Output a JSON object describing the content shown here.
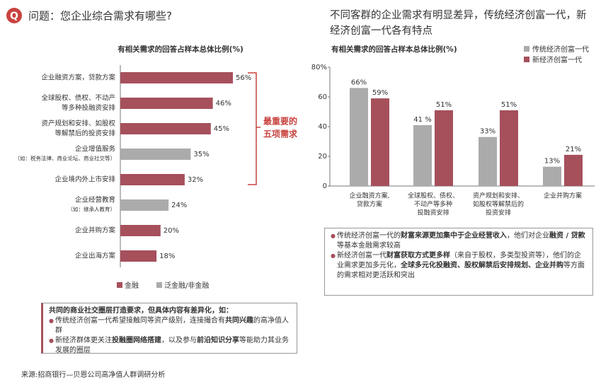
{
  "header": {
    "left_title": "问题：您企业综合需求有哪些?",
    "right_title": [
      "不同客群的企业需求有明显差异，传统经济创富一代，新",
      "经济创富一代各有特点"
    ],
    "source": "来源:招商银行—贝恩公司高净值人群调研分析"
  },
  "chart_data": [
    {
      "type": "hbar",
      "title": "有相关需求的回答占样本总体比例(%)",
      "categories": [
        [
          "企业融资方案，贷款方案"
        ],
        [
          "全球股权、债权、不动产",
          "等多种投融资安排"
        ],
        [
          "资产规划和安排、如股权",
          "等解禁后的投资安排"
        ],
        [
          "企业增值服务"
        ],
        [
          "企业境内外上市安排"
        ],
        [
          "企业经营教育"
        ],
        [
          "企业并购方案"
        ],
        [
          "企业出海方案"
        ]
      ],
      "category_notes": [
        null,
        null,
        null,
        "（如：税务法律、商业论坛、商业社交等）",
        null,
        "（如：继承人教育）",
        null,
        null
      ],
      "values": [
        56,
        46,
        45,
        35,
        32,
        24,
        20,
        18
      ],
      "value_labels": [
        "56%",
        "46%",
        "45%",
        "35%",
        "32%",
        "24%",
        "20%",
        "18%"
      ],
      "colors": [
        "#a6505c",
        "#a6505c",
        "#a6505c",
        "#ababab",
        "#a6505c",
        "#ababab",
        "#a6505c",
        "#a6505c"
      ],
      "legend": [
        {
          "name": "金融",
          "color": "#a6505c"
        },
        {
          "name": "泛金融/非金融",
          "color": "#ababab"
        }
      ],
      "annotation": [
        "最重要的",
        "五项需求"
      ]
    },
    {
      "type": "bar",
      "title": "有相关需求的回答占样本总体比例(%)",
      "categories": [
        [
          "企业融资方案,",
          "贷款方案"
        ],
        [
          "全球股权、债权、",
          "不动产等多种",
          "投融资安排"
        ],
        [
          "资产规划和安排、",
          "如股权等解禁后的",
          "投资安排"
        ],
        [
          "企业并购方案"
        ]
      ],
      "series": [
        {
          "name": "传统经济创富一代",
          "color": "#ababab",
          "values": [
            66,
            41,
            33,
            13
          ],
          "value_labels": [
            "66%",
            "41 %",
            "33%",
            "13%"
          ]
        },
        {
          "name": "新经济创富一代",
          "color": "#a6505c",
          "values": [
            59,
            51,
            51,
            21
          ],
          "value_labels": [
            "59%",
            "51%",
            "51%",
            "21%"
          ]
        }
      ],
      "ylim": [
        0,
        80
      ],
      "yticks": [
        0,
        20,
        40,
        60,
        {
          "value": 80,
          "label": "80%"
        }
      ],
      "legend": "top-right"
    }
  ],
  "left_box": {
    "heading": "共同的商业社交圈层打造要求，但具体内容有差异化，如：",
    "bullets": [
      [
        {
          "text": "传统经济创富一代希望接触同等资产级别，连接撮合有"
        },
        {
          "text": "共同兴趣",
          "bold": true
        },
        {
          "text": "的高净值人群"
        }
      ],
      [
        {
          "text": "新经济群体更关注"
        },
        {
          "text": "投融圈网络搭建",
          "bold": true
        },
        {
          "text": "，以及参与"
        },
        {
          "text": "前沿知识分享",
          "bold": true
        },
        {
          "text": "等能助力其业务发展的圈层"
        }
      ]
    ]
  },
  "right_box": {
    "bullets": [
      [
        {
          "text": "传统经济创富一代的"
        },
        {
          "text": "财富来源更加集中于企业经营收入",
          "bold": true
        },
        {
          "text": "，他们对企业"
        },
        {
          "text": "融资 / 贷款",
          "bold": true
        },
        {
          "text": "等基本金融需求较高"
        }
      ],
      [
        {
          "text": "新经济创富一代"
        },
        {
          "text": "财富获取方式更多样",
          "bold": true
        },
        {
          "text": "（来自于股权，多类型投资等），他们的企业需求更加多元化，"
        },
        {
          "text": "全球多元化投融资、股权解禁后安排规划、企业并购",
          "bold": true
        },
        {
          "text": "等方面的需求相对更活跃和突出"
        }
      ]
    ]
  }
}
